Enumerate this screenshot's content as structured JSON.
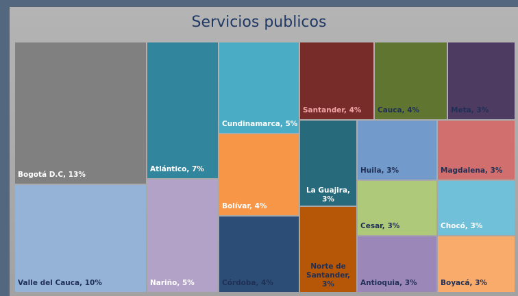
{
  "chart_data": {
    "type": "treemap",
    "title": "Servicios publicos",
    "categories": [
      "Bogotá D.C",
      "Valle del Cauca",
      "Atlántico",
      "Nariño",
      "Cundinamarca",
      "Bolívar",
      "Córdoba",
      "Santander",
      "Cauca",
      "Meta",
      "La Guajira",
      "Norte de Santander",
      "Huila",
      "Magdalena",
      "Cesar",
      "Chocó",
      "Antioquia",
      "Boyacá"
    ],
    "values": [
      13,
      10,
      7,
      5,
      5,
      4,
      4,
      4,
      4,
      3,
      3,
      3,
      3,
      3,
      3,
      3,
      3,
      3
    ],
    "labels": [
      "Bogotá D.C, 13%",
      "Valle del Cauca, 10%",
      "Atlántico, 7%",
      "Nariño, 5%",
      "Cundinamarca, 5%",
      "Bolívar, 4%",
      "Córdoba, 4%",
      "Santander, 4%",
      "Cauca, 4%",
      "Meta, 3%",
      "La Guajira, 3%",
      "Norte de Santander, 3%",
      "Huila, 3%",
      "Magdalena, 3%",
      "Cesar, 3%",
      "Chocó, 3%",
      "Antioquia, 3%",
      "Boyacá, 3%"
    ],
    "colors": [
      "#808080",
      "#95b3d7",
      "#31859c",
      "#b3a2c7",
      "#4bacc6",
      "#f79646",
      "#2c4d75",
      "#772c2a",
      "#5f7530",
      "#4d3b62",
      "#276a7c",
      "#b65708",
      "#729aca",
      "#d06f6d",
      "#afc97a",
      "#6fc0d8",
      "#9b87b8",
      "#f9ab6c"
    ]
  }
}
